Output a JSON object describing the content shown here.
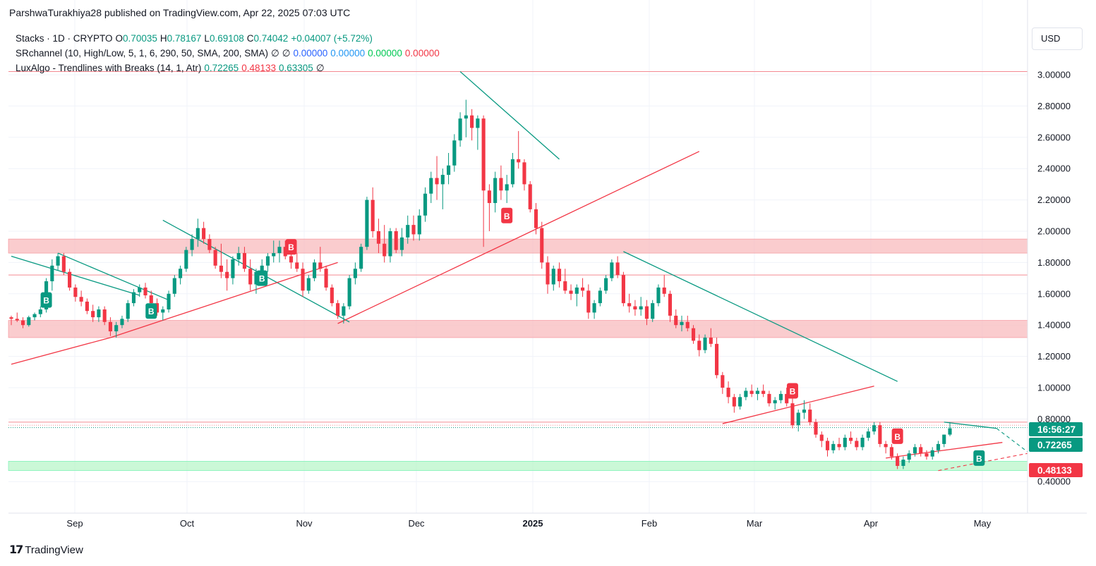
{
  "attribution": "ParshwaTurakhiya28 published on TradingView.com, Apr 22, 2025 07:03 UTC",
  "legend": {
    "main": {
      "symbol": "Stacks · 1D · CRYPTO",
      "o_label": "O",
      "o": "0.70035",
      "h_label": "H",
      "h": "0.78167",
      "l_label": "L",
      "l": "0.69108",
      "c_label": "C",
      "c": "0.74042",
      "change": "+0.04007 (+5.72%)"
    },
    "sr": {
      "name": "SRchannel (10, High/Low, 5, 1, 6, 290, 50, SMA, 200, SMA)",
      "n1": "∅",
      "n2": "∅",
      "v1": "0.00000",
      "v2": "0.00000",
      "v3": "0.00000",
      "v4": "0.00000"
    },
    "lux": {
      "name": "LuxAlgo - Trendlines with Breaks (14, 1, Atr)",
      "v1": "0.72265",
      "v2": "0.48133",
      "v3": "0.63305",
      "n": "∅"
    }
  },
  "currency": "USD",
  "brand": "TradingView",
  "colors": {
    "up": "#089981",
    "down": "#f23645",
    "resistance_zone": "#f8bbbe",
    "support_zone": "#b9f6ca"
  },
  "chart_data": {
    "type": "candlestick",
    "symbol": "Stacks",
    "interval": "1D",
    "y_axis": {
      "min": 0.4,
      "max": 3.0,
      "ticks": [
        "3.00000",
        "2.80000",
        "2.60000",
        "2.40000",
        "2.20000",
        "2.00000",
        "1.80000",
        "1.60000",
        "1.40000",
        "1.20000",
        "1.00000",
        "0.80000",
        "0.40000"
      ]
    },
    "x_axis": {
      "labels": [
        "Sep",
        "Oct",
        "Nov",
        "Dec",
        "2025",
        "Feb",
        "Mar",
        "Apr",
        "May"
      ]
    },
    "price_labels": [
      {
        "text": "16:56:27",
        "color": "#089981"
      },
      {
        "text": "0.72265",
        "color": "#089981"
      },
      {
        "text": "0.48133",
        "color": "#f23645"
      }
    ],
    "zones": [
      {
        "type": "resistance",
        "low": 1.86,
        "high": 1.95
      },
      {
        "type": "resistance",
        "low": 1.32,
        "high": 1.43
      },
      {
        "type": "support",
        "low": 0.47,
        "high": 0.53
      }
    ],
    "levels": [
      3.02,
      1.72,
      0.78,
      0.76
    ],
    "break_labels": [
      "B",
      "B",
      "B",
      "B",
      "B",
      "B",
      "B"
    ],
    "series": [
      [
        1.45,
        1.46,
        1.4,
        1.44
      ],
      [
        1.44,
        1.48,
        1.42,
        1.43
      ],
      [
        1.43,
        1.45,
        1.38,
        1.4
      ],
      [
        1.4,
        1.46,
        1.39,
        1.45
      ],
      [
        1.45,
        1.48,
        1.43,
        1.47
      ],
      [
        1.47,
        1.52,
        1.45,
        1.5
      ],
      [
        1.5,
        1.7,
        1.48,
        1.68
      ],
      [
        1.68,
        1.82,
        1.62,
        1.78
      ],
      [
        1.78,
        1.86,
        1.75,
        1.84
      ],
      [
        1.84,
        1.86,
        1.72,
        1.74
      ],
      [
        1.74,
        1.76,
        1.62,
        1.64
      ],
      [
        1.64,
        1.66,
        1.55,
        1.58
      ],
      [
        1.58,
        1.62,
        1.52,
        1.55
      ],
      [
        1.55,
        1.57,
        1.47,
        1.49
      ],
      [
        1.49,
        1.53,
        1.42,
        1.45
      ],
      [
        1.45,
        1.52,
        1.42,
        1.5
      ],
      [
        1.5,
        1.52,
        1.4,
        1.42
      ],
      [
        1.42,
        1.45,
        1.33,
        1.36
      ],
      [
        1.36,
        1.42,
        1.32,
        1.4
      ],
      [
        1.4,
        1.46,
        1.38,
        1.44
      ],
      [
        1.44,
        1.56,
        1.42,
        1.54
      ],
      [
        1.54,
        1.63,
        1.52,
        1.61
      ],
      [
        1.61,
        1.66,
        1.58,
        1.64
      ],
      [
        1.64,
        1.67,
        1.57,
        1.59
      ],
      [
        1.59,
        1.62,
        1.52,
        1.54
      ],
      [
        1.54,
        1.57,
        1.46,
        1.48
      ],
      [
        1.48,
        1.52,
        1.43,
        1.5
      ],
      [
        1.5,
        1.62,
        1.48,
        1.6
      ],
      [
        1.6,
        1.72,
        1.58,
        1.7
      ],
      [
        1.7,
        1.78,
        1.66,
        1.76
      ],
      [
        1.76,
        1.9,
        1.74,
        1.88
      ],
      [
        1.88,
        1.98,
        1.84,
        1.95
      ],
      [
        1.95,
        2.08,
        1.9,
        2.02
      ],
      [
        2.02,
        2.06,
        1.92,
        1.95
      ],
      [
        1.95,
        1.98,
        1.86,
        1.88
      ],
      [
        1.88,
        1.9,
        1.76,
        1.78
      ],
      [
        1.78,
        1.92,
        1.7,
        1.74
      ],
      [
        1.74,
        1.82,
        1.62,
        1.7
      ],
      [
        1.7,
        1.84,
        1.66,
        1.82
      ],
      [
        1.82,
        1.9,
        1.78,
        1.86
      ],
      [
        1.86,
        1.9,
        1.74,
        1.76
      ],
      [
        1.76,
        1.82,
        1.62,
        1.66
      ],
      [
        1.66,
        1.76,
        1.6,
        1.74
      ],
      [
        1.74,
        1.82,
        1.72,
        1.78
      ],
      [
        1.78,
        1.86,
        1.74,
        1.84
      ],
      [
        1.84,
        1.94,
        1.8,
        1.86
      ],
      [
        1.86,
        1.94,
        1.8,
        1.9
      ],
      [
        1.9,
        1.94,
        1.82,
        1.84
      ],
      [
        1.84,
        1.88,
        1.76,
        1.8
      ],
      [
        1.8,
        1.86,
        1.74,
        1.76
      ],
      [
        1.76,
        1.8,
        1.58,
        1.62
      ],
      [
        1.62,
        1.72,
        1.6,
        1.7
      ],
      [
        1.7,
        1.82,
        1.68,
        1.8
      ],
      [
        1.8,
        1.9,
        1.74,
        1.76
      ],
      [
        1.76,
        1.78,
        1.62,
        1.64
      ],
      [
        1.64,
        1.66,
        1.52,
        1.54
      ],
      [
        1.54,
        1.56,
        1.44,
        1.46
      ],
      [
        1.46,
        1.54,
        1.41,
        1.52
      ],
      [
        1.52,
        1.72,
        1.5,
        1.7
      ],
      [
        1.7,
        1.8,
        1.66,
        1.76
      ],
      [
        1.76,
        1.92,
        1.74,
        1.9
      ],
      [
        1.9,
        2.22,
        1.88,
        2.2
      ],
      [
        2.2,
        2.28,
        1.96,
        2.0
      ],
      [
        2.0,
        2.08,
        1.86,
        1.92
      ],
      [
        1.92,
        2.04,
        1.8,
        1.84
      ],
      [
        1.84,
        2.02,
        1.8,
        2.0
      ],
      [
        2.0,
        2.02,
        1.86,
        1.88
      ],
      [
        1.88,
        2.02,
        1.84,
        1.96
      ],
      [
        1.96,
        2.1,
        1.92,
        2.04
      ],
      [
        2.04,
        2.1,
        1.94,
        1.98
      ],
      [
        1.98,
        2.14,
        1.94,
        2.1
      ],
      [
        2.1,
        2.28,
        2.06,
        2.24
      ],
      [
        2.24,
        2.38,
        2.18,
        2.34
      ],
      [
        2.34,
        2.48,
        2.2,
        2.3
      ],
      [
        2.3,
        2.4,
        2.14,
        2.36
      ],
      [
        2.36,
        2.5,
        2.3,
        2.42
      ],
      [
        2.42,
        2.62,
        2.38,
        2.58
      ],
      [
        2.58,
        2.76,
        2.54,
        2.72
      ],
      [
        2.72,
        2.84,
        2.6,
        2.74
      ],
      [
        2.74,
        2.78,
        2.58,
        2.66
      ],
      [
        2.66,
        2.74,
        2.52,
        2.72
      ],
      [
        2.72,
        2.74,
        1.9,
        2.26
      ],
      [
        2.26,
        2.3,
        2.0,
        2.18
      ],
      [
        2.18,
        2.38,
        2.12,
        2.34
      ],
      [
        2.34,
        2.42,
        2.2,
        2.26
      ],
      [
        2.26,
        2.36,
        2.18,
        2.3
      ],
      [
        2.3,
        2.5,
        2.28,
        2.46
      ],
      [
        2.46,
        2.64,
        2.4,
        2.44
      ],
      [
        2.44,
        2.46,
        2.26,
        2.3
      ],
      [
        2.3,
        2.32,
        2.12,
        2.14
      ],
      [
        2.14,
        2.18,
        1.98,
        2.02
      ],
      [
        2.02,
        2.06,
        1.76,
        1.8
      ],
      [
        1.8,
        1.84,
        1.6,
        1.66
      ],
      [
        1.66,
        1.78,
        1.62,
        1.76
      ],
      [
        1.76,
        1.8,
        1.64,
        1.68
      ],
      [
        1.68,
        1.76,
        1.6,
        1.62
      ],
      [
        1.62,
        1.66,
        1.56,
        1.6
      ],
      [
        1.6,
        1.66,
        1.52,
        1.64
      ],
      [
        1.64,
        1.7,
        1.58,
        1.62
      ],
      [
        1.62,
        1.66,
        1.44,
        1.48
      ],
      [
        1.48,
        1.56,
        1.44,
        1.54
      ],
      [
        1.54,
        1.64,
        1.52,
        1.62
      ],
      [
        1.62,
        1.72,
        1.6,
        1.7
      ],
      [
        1.7,
        1.82,
        1.68,
        1.8
      ],
      [
        1.8,
        1.84,
        1.7,
        1.72
      ],
      [
        1.72,
        1.74,
        1.52,
        1.54
      ],
      [
        1.54,
        1.6,
        1.48,
        1.52
      ],
      [
        1.52,
        1.56,
        1.46,
        1.5
      ],
      [
        1.5,
        1.58,
        1.46,
        1.52
      ],
      [
        1.52,
        1.56,
        1.4,
        1.44
      ],
      [
        1.44,
        1.56,
        1.42,
        1.54
      ],
      [
        1.54,
        1.66,
        1.52,
        1.64
      ],
      [
        1.64,
        1.72,
        1.58,
        1.6
      ],
      [
        1.6,
        1.62,
        1.42,
        1.46
      ],
      [
        1.46,
        1.5,
        1.38,
        1.4
      ],
      [
        1.4,
        1.46,
        1.36,
        1.42
      ],
      [
        1.42,
        1.46,
        1.36,
        1.38
      ],
      [
        1.38,
        1.4,
        1.28,
        1.3
      ],
      [
        1.3,
        1.34,
        1.2,
        1.24
      ],
      [
        1.24,
        1.34,
        1.22,
        1.32
      ],
      [
        1.32,
        1.38,
        1.26,
        1.28
      ],
      [
        1.28,
        1.32,
        1.06,
        1.08
      ],
      [
        1.08,
        1.1,
        0.96,
        1.0
      ],
      [
        1.0,
        1.04,
        0.9,
        0.94
      ],
      [
        0.94,
        0.96,
        0.84,
        0.88
      ],
      [
        0.88,
        0.96,
        0.86,
        0.94
      ],
      [
        0.94,
        1.0,
        0.92,
        0.98
      ],
      [
        0.98,
        1.02,
        0.94,
        0.96
      ],
      [
        0.96,
        1.0,
        0.92,
        0.98
      ],
      [
        0.98,
        1.02,
        0.94,
        0.96
      ],
      [
        0.96,
        0.98,
        0.88,
        0.9
      ],
      [
        0.9,
        0.94,
        0.86,
        0.92
      ],
      [
        0.92,
        0.98,
        0.9,
        0.96
      ],
      [
        0.96,
        1.0,
        0.88,
        0.9
      ],
      [
        0.9,
        0.94,
        0.74,
        0.76
      ],
      [
        0.76,
        0.86,
        0.72,
        0.84
      ],
      [
        0.84,
        0.92,
        0.8,
        0.86
      ],
      [
        0.86,
        0.9,
        0.76,
        0.78
      ],
      [
        0.78,
        0.8,
        0.68,
        0.7
      ],
      [
        0.7,
        0.72,
        0.62,
        0.66
      ],
      [
        0.66,
        0.68,
        0.56,
        0.6
      ],
      [
        0.6,
        0.66,
        0.58,
        0.64
      ],
      [
        0.64,
        0.68,
        0.6,
        0.62
      ],
      [
        0.62,
        0.7,
        0.6,
        0.68
      ],
      [
        0.68,
        0.72,
        0.64,
        0.66
      ],
      [
        0.66,
        0.68,
        0.6,
        0.62
      ],
      [
        0.62,
        0.7,
        0.6,
        0.68
      ],
      [
        0.68,
        0.74,
        0.66,
        0.72
      ],
      [
        0.72,
        0.78,
        0.7,
        0.76
      ],
      [
        0.76,
        0.78,
        0.62,
        0.64
      ],
      [
        0.64,
        0.66,
        0.58,
        0.62
      ],
      [
        0.62,
        0.64,
        0.54,
        0.56
      ],
      [
        0.56,
        0.58,
        0.48,
        0.5
      ],
      [
        0.5,
        0.56,
        0.48,
        0.54
      ],
      [
        0.54,
        0.6,
        0.52,
        0.58
      ],
      [
        0.58,
        0.64,
        0.56,
        0.62
      ],
      [
        0.62,
        0.64,
        0.56,
        0.58
      ],
      [
        0.58,
        0.6,
        0.54,
        0.56
      ],
      [
        0.56,
        0.62,
        0.54,
        0.6
      ],
      [
        0.6,
        0.66,
        0.58,
        0.64
      ],
      [
        0.64,
        0.7,
        0.62,
        0.7
      ],
      [
        0.7,
        0.78,
        0.69,
        0.74
      ]
    ]
  }
}
